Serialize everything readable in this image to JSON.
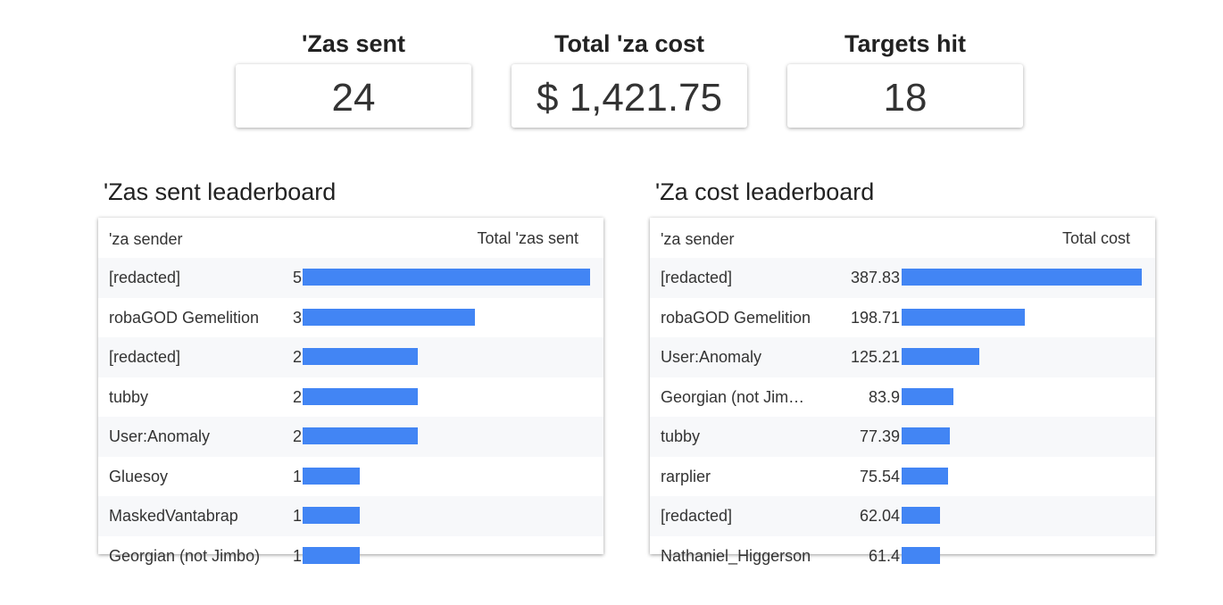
{
  "kpis": [
    {
      "label": "'Zas sent",
      "value": "24"
    },
    {
      "label": "Total 'za cost",
      "value": "$ 1,421.75"
    },
    {
      "label": "Targets hit",
      "value": "18"
    }
  ],
  "bar_color": "#4285f4",
  "sent_leaderboard": {
    "title": "'Zas sent leaderboard",
    "col_name": "'za sender",
    "col_value": "Total 'zas sent",
    "max": 5,
    "rows": [
      {
        "name": "[redacted]",
        "value": 5
      },
      {
        "name": "robaGOD Gemelition",
        "value": 3
      },
      {
        "name": "[redacted]",
        "value": 2
      },
      {
        "name": "tubby",
        "value": 2
      },
      {
        "name": "User:Anomaly",
        "value": 2
      },
      {
        "name": "Gluesoy",
        "value": 1
      },
      {
        "name": "MaskedVantabrap",
        "value": 1
      },
      {
        "name": "Georgian (not Jimbo)",
        "value": 1
      }
    ]
  },
  "cost_leaderboard": {
    "title": "'Za cost leaderboard",
    "col_name": "'za sender",
    "col_value": "Total cost",
    "max": 387.83,
    "rows": [
      {
        "name": "[redacted]",
        "value": 387.83
      },
      {
        "name": "robaGOD Gemelition",
        "value": 198.71
      },
      {
        "name": "User:Anomaly",
        "value": 125.21
      },
      {
        "name": "Georgian (not Jim…",
        "value": 83.9
      },
      {
        "name": "tubby",
        "value": 77.39
      },
      {
        "name": "rarplier",
        "value": 75.54
      },
      {
        "name": "[redacted]",
        "value": 62.04
      },
      {
        "name": "Nathaniel_Higgerson",
        "value": 61.4
      }
    ]
  }
}
